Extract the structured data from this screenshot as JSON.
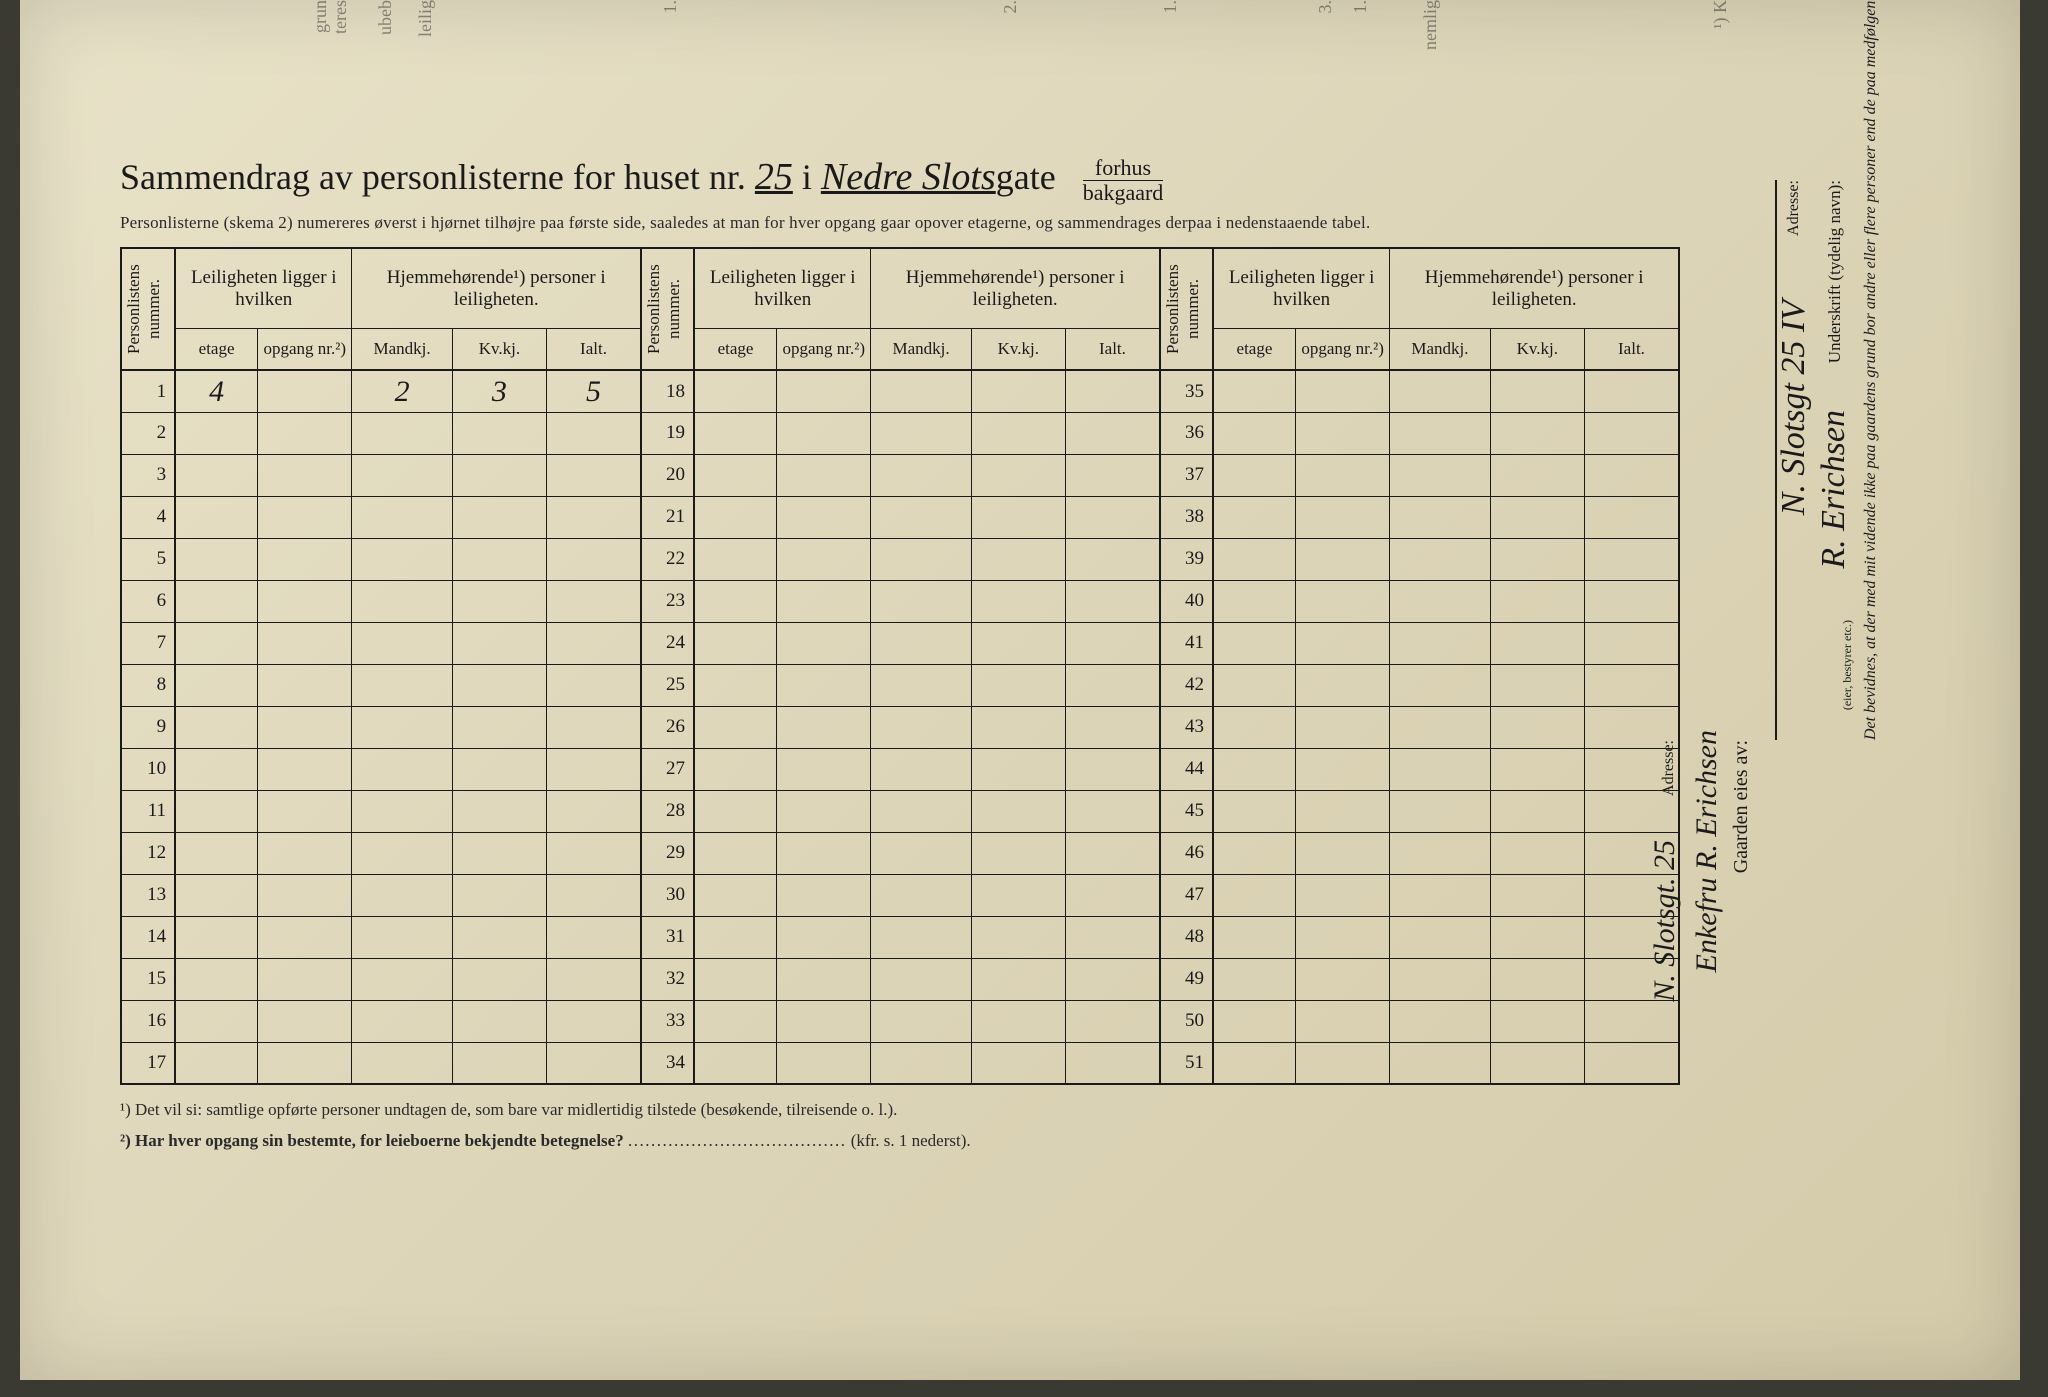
{
  "title": {
    "prefix": "Sammendrag av personlisterne for huset nr.",
    "house_number_hw": "25",
    "mid": " i ",
    "street_hw": "Nedre Slots",
    "street_suffix": "gate",
    "frac_top": "forhus",
    "frac_bottom": "bakgaard"
  },
  "subtitle": "Personlisterne (skema 2) numereres øverst i hjørnet tilhøjre paa første side, saaledes at man for hver opgang gaar opover etagerne, og sammendrages derpaa i nedenstaaende tabel.",
  "headers": {
    "personlistens": "Personlistens nummer.",
    "leiligheten_group": "Leiligheten ligger i hvilken",
    "hjemme_group": "Hjemmehørende¹) personer i leiligheten.",
    "etage": "etage",
    "opgang": "opgang nr.²)",
    "mandkj": "Mandkj.",
    "kvkj": "Kv.kj.",
    "ialt": "Ialt."
  },
  "row_start": [
    1,
    18,
    35
  ],
  "row_count": 17,
  "data_row1": {
    "etage": "4",
    "mandkj": "2",
    "kvkj": "3",
    "ialt": "5"
  },
  "footnotes": {
    "f1": "¹) Det vil si: samtlige opførte personer undtagen de, som bare var midlertidig tilstede (besøkende, tilreisende o. l.).",
    "f2_label": "²) Har hver opgang sin bestemte, for leieboerne bekjendte betegnelse?",
    "f2_ref": "(kfr. s. 1 nederst)."
  },
  "right": {
    "attest": "Det bevidnes, at der med mit vidende ikke paa gaardens grund bor andre eller flere personer end de paa medfølgende (antal:)  personlister opførte.",
    "underskrift_label": "Underskrift (tydelig navn):",
    "underskrift_note": "(eier, bestyrer etc.)",
    "signature": "R. Erichsen",
    "adresse_label": "Adresse:",
    "adresse_value": "N. Slotsgt 25 IV",
    "gaarden_label": "Gaarden eies av:",
    "gaarden_value": "Enkefru R. Erichsen",
    "adresse2_label": "Adresse:",
    "adresse2_value": "N. Slotsgt. 25"
  },
  "top_peek": [
    "grun",
    "teres",
    "ubeb",
    "leilig",
    "1.",
    "2.",
    "1.",
    "3.",
    "1.",
    "nemlig",
    "¹) K"
  ],
  "colors": {
    "paper": "#e0d8bc",
    "ink": "#1a1a1a",
    "handwriting": "#2a2a2a"
  }
}
